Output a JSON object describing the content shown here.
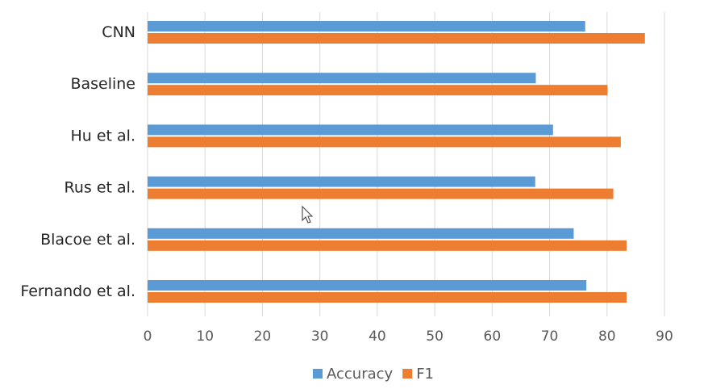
{
  "chart_data": {
    "type": "bar",
    "orientation": "horizontal",
    "categories": [
      "CNN",
      "Baseline",
      "Hu et al.",
      "Rus et al.",
      "Blacoe et al.",
      "Fernando et al."
    ],
    "series": [
      {
        "name": "Accuracy",
        "color": "#5b9bd5",
        "values": [
          76.2,
          67.6,
          70.6,
          67.5,
          74.2,
          76.4
        ]
      },
      {
        "name": "F1",
        "color": "#ed7d31",
        "values": [
          86.6,
          80.1,
          82.4,
          81.1,
          83.4,
          83.4
        ]
      }
    ],
    "xlim": [
      0,
      90
    ],
    "x_ticks": [
      "0",
      "10",
      "20",
      "30",
      "40",
      "50",
      "60",
      "70",
      "80",
      "90"
    ],
    "grid": true,
    "legend_position": "bottom",
    "title": "",
    "xlabel": "",
    "ylabel": ""
  },
  "cursor": {
    "icon": "mouse-pointer-icon"
  }
}
